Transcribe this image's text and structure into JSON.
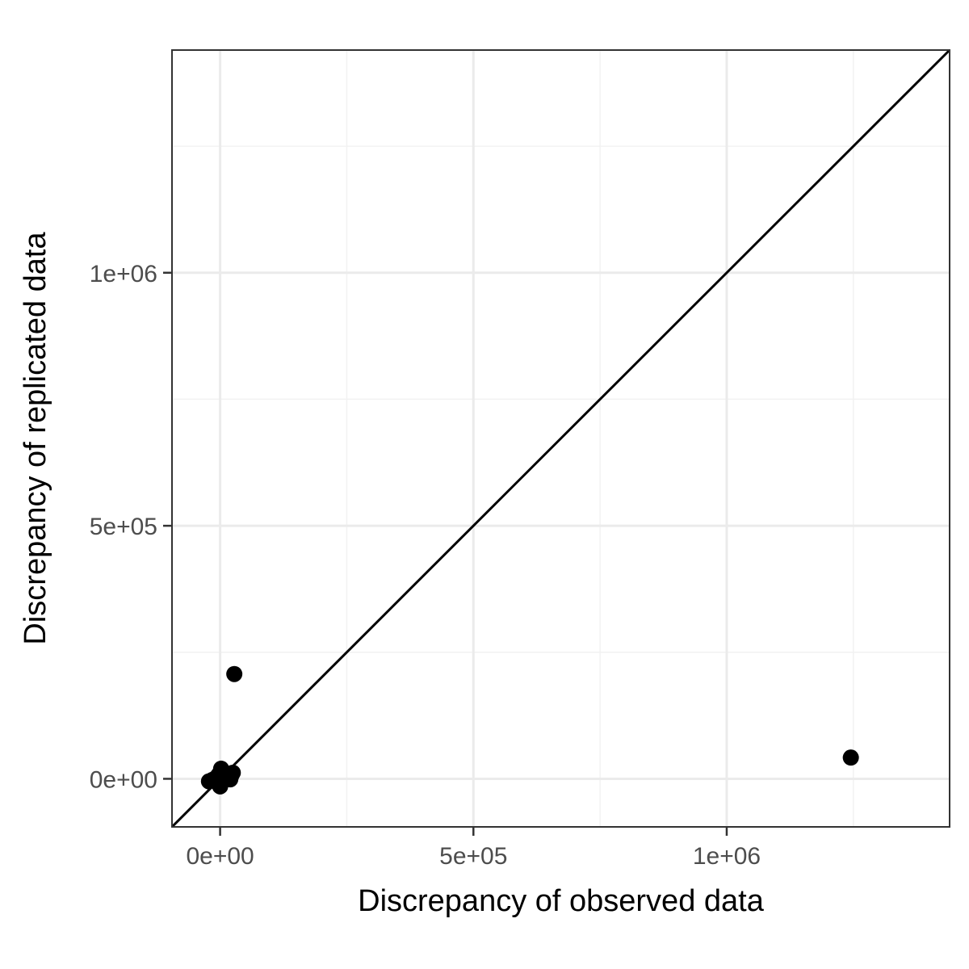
{
  "chart_data": {
    "type": "scatter",
    "title": "",
    "xlabel": "Discrepancy of observed data",
    "ylabel": "Discrepancy of replicated data",
    "xlim": [
      -95000,
      1440000
    ],
    "ylim": [
      -95000,
      1440000
    ],
    "x_ticks": [
      0,
      500000,
      1000000
    ],
    "x_tick_labels": [
      "0e+00",
      "5e+05",
      "1e+06"
    ],
    "y_ticks": [
      0,
      500000,
      1000000
    ],
    "y_tick_labels": [
      "0e+00",
      "5e+05",
      "1e+06"
    ],
    "x_minor_gridlines": [
      250000,
      750000,
      1250000
    ],
    "y_minor_gridlines": [
      250000,
      750000,
      1250000
    ],
    "grid": true,
    "reference_line": "y = x",
    "points": [
      {
        "x": -22000,
        "y": -5000
      },
      {
        "x": -15000,
        "y": -2000
      },
      {
        "x": -8000,
        "y": 2000
      },
      {
        "x": -3000,
        "y": 8000
      },
      {
        "x": 2000,
        "y": 20000
      },
      {
        "x": 5000,
        "y": 12000
      },
      {
        "x": 0,
        "y": -15000
      },
      {
        "x": -2000,
        "y": -10000
      },
      {
        "x": 8000,
        "y": 3000
      },
      {
        "x": 12000,
        "y": 5000
      },
      {
        "x": 18000,
        "y": 2000
      },
      {
        "x": 22000,
        "y": 6000
      },
      {
        "x": 25000,
        "y": 12000
      },
      {
        "x": 20000,
        "y": -1000
      },
      {
        "x": 28000,
        "y": 207000
      },
      {
        "x": 1245000,
        "y": 42000
      }
    ],
    "colors": {
      "points": "#000000",
      "panel_border": "#333333",
      "grid_major": "#ebebeb",
      "grid_minor": "#f2f2f2",
      "tick_labels": "#4d4d4d"
    }
  }
}
